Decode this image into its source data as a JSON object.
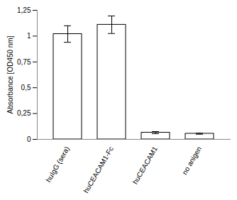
{
  "chart_data": {
    "type": "bar",
    "categories": [
      "huIgG (sera)",
      "huCEACAM1-Fc",
      "huCEACAM1",
      "no anigen"
    ],
    "values": [
      1.02,
      1.11,
      0.065,
      0.055
    ],
    "errors": [
      0.08,
      0.085,
      0.01,
      0.005
    ],
    "color": "#ffffff",
    "y_label": "Absorbance [OD450 nm]",
    "ylim": [
      0,
      1.25
    ],
    "yticks": [
      0,
      {
        "value": 0.25,
        "label": "0,25"
      },
      {
        "value": 0.5,
        "label": "0,5"
      },
      {
        "value": 0.75,
        "label": "0,75"
      },
      1,
      {
        "value": 1.25,
        "label": "1,25"
      }
    ],
    "grid": false
  }
}
